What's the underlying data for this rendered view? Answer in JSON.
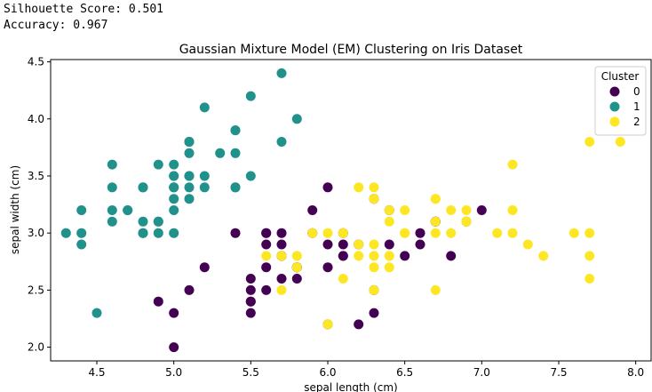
{
  "output": {
    "silhouette_line": "Silhouette Score: 0.501",
    "accuracy_line": "Accuracy: 0.967"
  },
  "colors": {
    "cluster_0": "#440154",
    "cluster_1": "#21918c",
    "cluster_2": "#fde725"
  },
  "chart_data": {
    "type": "scatter",
    "title": "Gaussian Mixture Model (EM) Clustering on Iris Dataset",
    "xlabel": "sepal length (cm)",
    "ylabel": "sepal width (cm)",
    "xlim": [
      4.2,
      8.1
    ],
    "ylim": [
      1.88,
      4.52
    ],
    "xticks": [
      "4.5",
      "5.0",
      "5.5",
      "6.0",
      "6.5",
      "7.0",
      "7.5",
      "8.0"
    ],
    "yticks": [
      "2.0",
      "2.5",
      "3.0",
      "3.5",
      "4.0",
      "4.5"
    ],
    "grid": false,
    "legend": {
      "title": "Cluster",
      "position": "top-right"
    },
    "series": [
      {
        "name": "0",
        "x": [
          7.0,
          6.4,
          6.9,
          5.5,
          6.5,
          5.7,
          6.3,
          4.9,
          6.6,
          5.2,
          5.0,
          5.9,
          6.0,
          6.1,
          5.6,
          6.7,
          5.6,
          5.8,
          6.2,
          5.6,
          5.9,
          6.1,
          6.3,
          6.1,
          6.4,
          6.6,
          6.8,
          6.0,
          5.7,
          5.5,
          5.5,
          5.8,
          6.0,
          5.4,
          6.0,
          6.7,
          6.3,
          5.6,
          5.5,
          5.5,
          6.1,
          5.8,
          5.0,
          5.6,
          5.7,
          5.7,
          6.2,
          5.1,
          5.7
        ],
        "y": [
          3.2,
          3.2,
          3.1,
          2.3,
          2.8,
          2.8,
          3.3,
          2.4,
          2.9,
          2.7,
          2.0,
          3.0,
          2.2,
          2.9,
          2.9,
          3.1,
          3.0,
          2.7,
          2.2,
          2.5,
          3.2,
          2.8,
          2.5,
          2.8,
          2.9,
          3.0,
          2.8,
          2.9,
          2.6,
          2.4,
          2.4,
          2.7,
          2.7,
          3.0,
          3.4,
          3.1,
          2.3,
          3.0,
          2.5,
          2.6,
          3.0,
          2.6,
          2.3,
          2.7,
          3.0,
          2.9,
          2.9,
          2.5,
          2.8
        ]
      },
      {
        "name": "1",
        "x": [
          5.1,
          4.9,
          4.7,
          4.6,
          5.0,
          5.4,
          4.6,
          5.0,
          4.4,
          4.9,
          5.4,
          4.8,
          4.8,
          4.3,
          5.8,
          5.7,
          5.4,
          5.1,
          5.7,
          5.1,
          5.4,
          5.1,
          4.6,
          5.1,
          4.8,
          5.0,
          5.0,
          5.2,
          5.2,
          4.7,
          4.8,
          5.4,
          5.2,
          5.5,
          4.9,
          5.0,
          5.5,
          4.9,
          4.4,
          5.1,
          5.0,
          4.5,
          4.4,
          5.0,
          5.1,
          4.8,
          5.1,
          4.6,
          5.3,
          5.0
        ],
        "y": [
          3.5,
          3.0,
          3.2,
          3.1,
          3.6,
          3.9,
          3.4,
          3.4,
          2.9,
          3.1,
          3.7,
          3.4,
          3.0,
          3.0,
          4.0,
          4.4,
          3.9,
          3.5,
          3.8,
          3.8,
          3.4,
          3.7,
          3.6,
          3.3,
          3.4,
          3.0,
          3.4,
          3.5,
          3.4,
          3.2,
          3.1,
          3.4,
          4.1,
          4.2,
          3.1,
          3.2,
          3.5,
          3.6,
          3.0,
          3.4,
          3.5,
          2.3,
          3.2,
          3.5,
          3.8,
          3.0,
          3.8,
          3.2,
          3.7,
          3.3
        ]
      },
      {
        "name": "2",
        "x": [
          6.3,
          7.1,
          6.3,
          6.5,
          7.6,
          7.3,
          6.7,
          7.2,
          6.5,
          6.4,
          6.8,
          5.7,
          5.8,
          6.4,
          6.5,
          7.7,
          7.7,
          6.0,
          6.9,
          5.6,
          7.7,
          6.3,
          6.7,
          7.2,
          6.2,
          6.1,
          6.4,
          7.2,
          7.4,
          7.9,
          6.4,
          6.3,
          6.1,
          7.7,
          6.3,
          6.4,
          6.0,
          6.9,
          6.7,
          6.9,
          5.8,
          6.8,
          6.7,
          6.7,
          6.3,
          6.5,
          6.2,
          5.9,
          5.7,
          5.8,
          6.2
        ],
        "y": [
          3.3,
          3.0,
          2.9,
          3.0,
          3.0,
          2.9,
          2.5,
          3.6,
          3.2,
          2.7,
          3.0,
          2.5,
          2.8,
          3.2,
          3.0,
          3.8,
          2.6,
          2.2,
          3.2,
          2.8,
          2.8,
          2.7,
          3.3,
          3.2,
          2.8,
          3.0,
          2.8,
          3.0,
          2.8,
          3.8,
          2.8,
          2.8,
          2.6,
          3.0,
          3.4,
          3.1,
          3.0,
          3.1,
          3.1,
          3.1,
          2.7,
          3.2,
          3.3,
          3.0,
          2.5,
          3.0,
          3.4,
          3.0,
          2.8,
          2.8,
          2.9
        ]
      }
    ]
  }
}
